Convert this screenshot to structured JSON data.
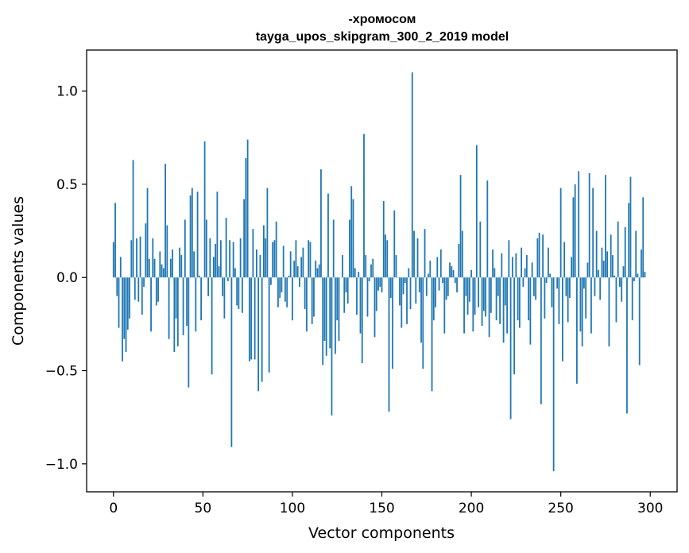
{
  "chart_data": {
    "type": "bar",
    "title": "-хромосом",
    "subtitle": "tayga_upos_skipgram_300_2_2019 model",
    "xlabel": "Vector components",
    "ylabel": "Components values",
    "xlim": [
      -15,
      315
    ],
    "ylim": [
      -1.15,
      1.22
    ],
    "xticks": [
      0,
      50,
      100,
      150,
      200,
      250,
      300
    ],
    "xtick_labels": [
      "0",
      "50",
      "100",
      "150",
      "200",
      "250",
      "300"
    ],
    "yticks": [
      -1.0,
      -0.5,
      0.0,
      0.5,
      1.0
    ],
    "ytick_labels": [
      "−1.0",
      "−0.5",
      "0.0",
      "0.5",
      "1.0"
    ],
    "bar_color": "#1f77b4",
    "grid": false,
    "series": [
      {
        "values": [
          0.19,
          0.4,
          -0.1,
          -0.27,
          0.11,
          -0.45,
          -0.33,
          -0.4,
          -0.28,
          -0.22,
          0.2,
          0.63,
          -0.12,
          0.21,
          -0.13,
          0.22,
          -0.2,
          -0.05,
          0.29,
          0.48,
          0.1,
          -0.29,
          0.21,
          0.1,
          -0.15,
          -0.13,
          0.14,
          0.07,
          0.05,
          0.61,
          0.28,
          -0.33,
          0.1,
          0.15,
          -0.4,
          -0.22,
          -0.37,
          0.16,
          0.12,
          -0.31,
          0.31,
          -0.26,
          -0.59,
          0.44,
          0.48,
          0.14,
          -0.29,
          0.46,
          0.01,
          -0.23,
          0.0,
          0.73,
          0.31,
          -0.1,
          0.21,
          -0.52,
          0.11,
          0.18,
          0.46,
          0.06,
          0.2,
          -0.1,
          -0.22,
          0.32,
          -0.02,
          0.2,
          -0.91,
          0.19,
          0.05,
          -0.15,
          -0.17,
          0.21,
          -0.19,
          0.42,
          0.64,
          0.74,
          -0.45,
          -0.44,
          0.26,
          -0.44,
          0.15,
          -0.61,
          0.12,
          -0.56,
          0.28,
          0.21,
          0.48,
          -0.51,
          -0.04,
          0.19,
          0.2,
          0.3,
          -0.16,
          -0.11,
          -0.08,
          0.17,
          -0.13,
          -0.16,
          0.01,
          0.14,
          -0.23,
          0.09,
          0.2,
          0.06,
          -0.05,
          0.11,
          0.16,
          -0.17,
          -0.29,
          0.2,
          0.19,
          -0.25,
          -0.21,
          0.09,
          0.05,
          0.07,
          0.58,
          -0.47,
          -0.34,
          -0.42,
          0.45,
          -0.38,
          -0.74,
          0.31,
          -0.41,
          -0.23,
          -0.34,
          0.0,
          0.12,
          -0.19,
          -0.08,
          -0.14,
          0.31,
          0.49,
          0.42,
          0.05,
          -0.2,
          0.03,
          -0.3,
          -0.46,
          0.77,
          0.12,
          -0.21,
          -0.02,
          0.07,
          0.1,
          -0.32,
          -0.18,
          -0.07,
          -0.05,
          -0.08,
          0.41,
          0.23,
          0.2,
          -0.72,
          -0.11,
          -0.49,
          0.36,
          0.12,
          0.0,
          -0.15,
          -0.27,
          -0.09,
          -0.03,
          -0.25,
          0.05,
          -0.17,
          1.1,
          0.25,
          -0.14,
          0.21,
          -0.08,
          -0.35,
          -0.49,
          0.26,
          -0.1,
          0.02,
          0.09,
          -0.61,
          -0.23,
          -0.16,
          0.11,
          -0.07,
          0.15,
          -0.03,
          -0.3,
          -0.12,
          -0.1,
          0.08,
          0.06,
          0.04,
          -0.03,
          -0.08,
          0.18,
          0.55,
          0.25,
          -0.3,
          -0.1,
          -0.2,
          -0.13,
          0.04,
          -0.29,
          -0.2,
          0.71,
          -0.16,
          0.3,
          -0.26,
          -0.18,
          -0.21,
          0.52,
          -0.32,
          -0.19,
          0.15,
          0.05,
          -0.23,
          -0.1,
          -0.25,
          0.13,
          -0.35,
          -0.15,
          -0.3,
          0.2,
          -0.76,
          0.11,
          -0.52,
          0.13,
          -0.23,
          -0.27,
          0.16,
          -0.05,
          0.05,
          0.12,
          -0.23,
          -0.36,
          0.08,
          -0.1,
          -0.12,
          0.21,
          0.24,
          -0.68,
          0.23,
          -0.22,
          -0.03,
          0.16,
          0.02,
          -0.16,
          -1.04,
          0.0,
          -0.06,
          -0.25,
          0.48,
          -0.45,
          0.19,
          -0.1,
          -0.24,
          -0.11,
          0.11,
          0.43,
          0.5,
          -0.57,
          0.57,
          -0.29,
          -0.37,
          -0.06,
          -0.22,
          0.08,
          0.56,
          -0.3,
          0.48,
          -0.1,
          0.25,
          0.04,
          -0.12,
          0.16,
          0.09,
          0.55,
          0.14,
          -0.37,
          0.23,
          0.12,
          0.01,
          -0.24,
          0.3,
          -0.05,
          -0.13,
          0.06,
          0.27,
          -0.73,
          0.4,
          0.54,
          -0.23,
          -0.02,
          0.25,
          0.02,
          -0.47,
          0.15,
          0.43,
          0.03
        ]
      }
    ]
  }
}
